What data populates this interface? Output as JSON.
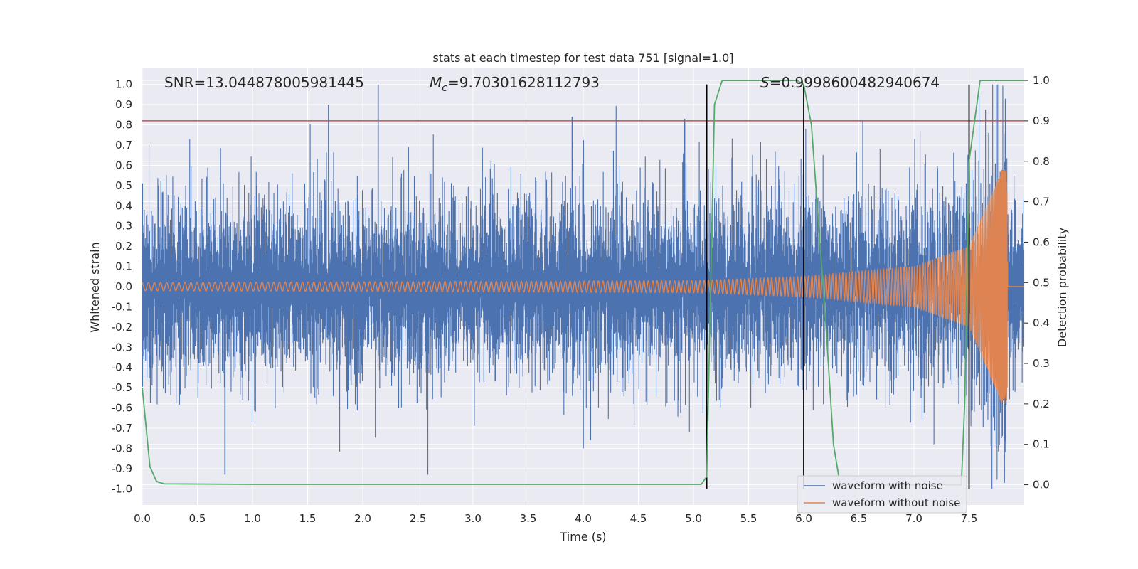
{
  "chart_data": {
    "type": "line",
    "title": "stats at each timestep for test data 751 [signal=1.0]",
    "xlabel": "Time (s)",
    "ylabel": "Whitened strain",
    "ylabel_right": "Detection probability",
    "xlim": [
      0.0,
      8.0
    ],
    "ylim": [
      -1.08,
      1.08
    ],
    "ylim_right": [
      -0.05,
      1.03
    ],
    "x_ticks": [
      "0.0",
      "0.5",
      "1.0",
      "1.5",
      "2.0",
      "2.5",
      "3.0",
      "3.5",
      "4.0",
      "4.5",
      "5.0",
      "5.5",
      "6.0",
      "6.5",
      "7.0",
      "7.5"
    ],
    "y_ticks": [
      "1.0",
      "0.9",
      "0.8",
      "0.7",
      "0.6",
      "0.5",
      "0.4",
      "0.3",
      "0.2",
      "0.1",
      "0.0",
      "-0.1",
      "-0.2",
      "-0.3",
      "-0.4",
      "-0.5",
      "-0.6",
      "-0.7",
      "-0.8",
      "-0.9",
      "-1.0"
    ],
    "y_right_ticks": [
      "1.0",
      "0.9",
      "0.8",
      "0.7",
      "0.6",
      "0.5",
      "0.4",
      "0.3",
      "0.2",
      "0.1",
      "0.0"
    ],
    "annotations": {
      "snr": "SNR=13.044878005981445",
      "mc_symbol": "M",
      "mc_sub": "c",
      "mc_value": "=9.70301628112793",
      "s_symbol": "S",
      "s_value": "=0.9998600482940674"
    },
    "threshold": {
      "value": 0.9,
      "axis": "right",
      "color": "#c44e52"
    },
    "vertical_lines": [
      5.12,
      6.0,
      7.5
    ],
    "legend": {
      "position": "lower-right",
      "entries": [
        "waveform with noise",
        "waveform without noise"
      ]
    },
    "series": [
      {
        "name": "waveform with noise",
        "color": "#4c72b0",
        "description": "noisy whitened strain, 0–8 s",
        "peaks": [
          {
            "x": 1.69,
            "y": 0.9
          },
          {
            "x": 2.14,
            "y": 1.0
          },
          {
            "x": 3.9,
            "y": 0.84
          },
          {
            "x": 4.92,
            "y": 0.83
          },
          {
            "x": 7.83,
            "y": 0.93
          },
          {
            "x": 0.75,
            "y": -0.93
          },
          {
            "x": 4.0,
            "y": -0.8
          },
          {
            "x": 7.82,
            "y": -0.97
          }
        ]
      },
      {
        "name": "waveform without noise",
        "color": "#dd8452",
        "description": "chirp signal; amplitude rises toward merger",
        "amplitude": [
          {
            "x": 0.0,
            "y": 0.02
          },
          {
            "x": 5.0,
            "y": 0.03
          },
          {
            "x": 6.0,
            "y": 0.05
          },
          {
            "x": 7.0,
            "y": 0.1
          },
          {
            "x": 7.5,
            "y": 0.2
          },
          {
            "x": 7.8,
            "y": 0.58
          }
        ],
        "merger_time": 7.85
      },
      {
        "name": "detection probability",
        "color": "#55a868",
        "axis": "right",
        "x": [
          0.0,
          0.07,
          0.13,
          0.2,
          0.3,
          1.0,
          2.0,
          3.0,
          4.0,
          5.0,
          5.07,
          5.12,
          5.19,
          5.26,
          5.5,
          5.94,
          6.0,
          6.07,
          6.2,
          6.27,
          6.33,
          7.0,
          7.43,
          7.46,
          7.5,
          7.6,
          7.7,
          8.0
        ],
        "y": [
          0.24,
          0.045,
          0.008,
          0.002,
          0.002,
          0.001,
          0.001,
          0.001,
          0.001,
          0.001,
          0.001,
          0.02,
          0.94,
          1.0,
          1.0,
          1.0,
          0.99,
          0.89,
          0.4,
          0.1,
          0.0,
          0.0,
          0.0,
          0.2,
          0.8,
          1.0,
          1.0,
          1.0
        ]
      }
    ]
  }
}
